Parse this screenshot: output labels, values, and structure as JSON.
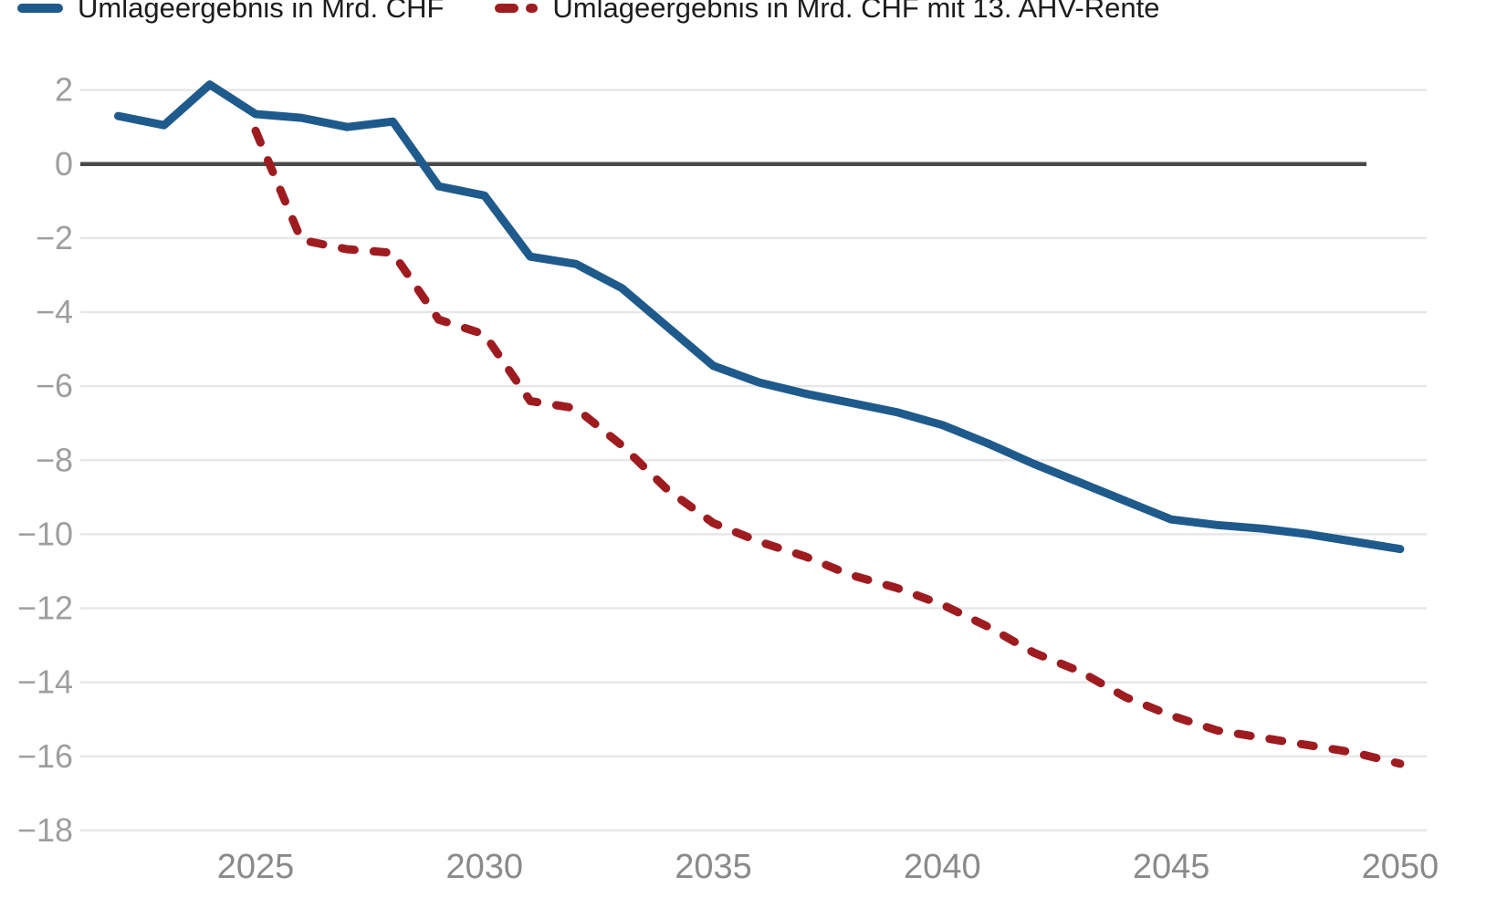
{
  "chart_data": {
    "type": "line",
    "title": "",
    "xlabel": "",
    "ylabel": "",
    "grid": "horizontal",
    "legend_position": "top",
    "x_axis": {
      "range": [
        2022,
        2050
      ],
      "ticks": [
        {
          "value": 2025,
          "label": "2025"
        },
        {
          "value": 2030,
          "label": "2030"
        },
        {
          "value": 2035,
          "label": "2035"
        },
        {
          "value": 2040,
          "label": "2040"
        },
        {
          "value": 2045,
          "label": "2045"
        },
        {
          "value": 2050,
          "label": "2050"
        }
      ]
    },
    "y_axis": {
      "range": [
        -18,
        2
      ],
      "ticks": [
        {
          "value": 2,
          "label": "2"
        },
        {
          "value": 0,
          "label": "0"
        },
        {
          "value": -2,
          "label": "−2"
        },
        {
          "value": -4,
          "label": "−4"
        },
        {
          "value": -6,
          "label": "−6"
        },
        {
          "value": -8,
          "label": "−8"
        },
        {
          "value": -10,
          "label": "−10"
        },
        {
          "value": -12,
          "label": "−12"
        },
        {
          "value": -14,
          "label": "−14"
        },
        {
          "value": -16,
          "label": "−16"
        },
        {
          "value": -18,
          "label": "−18"
        }
      ]
    },
    "series": [
      {
        "name": "Umlageergebnis in Mrd. CHF",
        "color": "#1f5a8c",
        "style": "solid",
        "x": [
          2022,
          2023,
          2024,
          2025,
          2026,
          2027,
          2028,
          2029,
          2030,
          2031,
          2032,
          2033,
          2034,
          2035,
          2036,
          2037,
          2038,
          2039,
          2040,
          2041,
          2042,
          2043,
          2044,
          2045,
          2046,
          2047,
          2048,
          2049,
          2050
        ],
        "values": [
          1.3,
          1.05,
          2.15,
          1.35,
          1.25,
          1.0,
          1.15,
          -0.6,
          -0.85,
          -2.5,
          -2.7,
          -3.35,
          -4.4,
          -5.45,
          -5.9,
          -6.2,
          -6.45,
          -6.7,
          -7.05,
          -7.55,
          -8.1,
          -8.6,
          -9.1,
          -9.6,
          -9.75,
          -9.85,
          -10.0,
          -10.2,
          -10.4
        ]
      },
      {
        "name": "Umlageergebnis in Mrd. CHF mit 13. AHV-Rente",
        "color": "#9e1c20",
        "style": "dashed",
        "x": [
          2025,
          2026,
          2027,
          2028,
          2029,
          2030,
          2031,
          2032,
          2033,
          2034,
          2035,
          2036,
          2037,
          2038,
          2039,
          2040,
          2041,
          2042,
          2043,
          2044,
          2045,
          2046,
          2047,
          2048,
          2049,
          2050
        ],
        "values": [
          0.9,
          -2.05,
          -2.3,
          -2.4,
          -4.2,
          -4.6,
          -6.4,
          -6.6,
          -7.6,
          -8.8,
          -9.7,
          -10.2,
          -10.6,
          -11.1,
          -11.45,
          -11.9,
          -12.5,
          -13.2,
          -13.7,
          -14.4,
          -14.9,
          -15.3,
          -15.5,
          -15.7,
          -15.9,
          -16.2
        ]
      }
    ],
    "colors": {
      "background": "#ffffff",
      "gridline": "#e7e7e7",
      "zero_line": "#4a4a4a",
      "y_tick_label": "#9e9e9e",
      "x_tick_label": "#8a8a8a",
      "legend_text": "#1c1c1c"
    }
  }
}
